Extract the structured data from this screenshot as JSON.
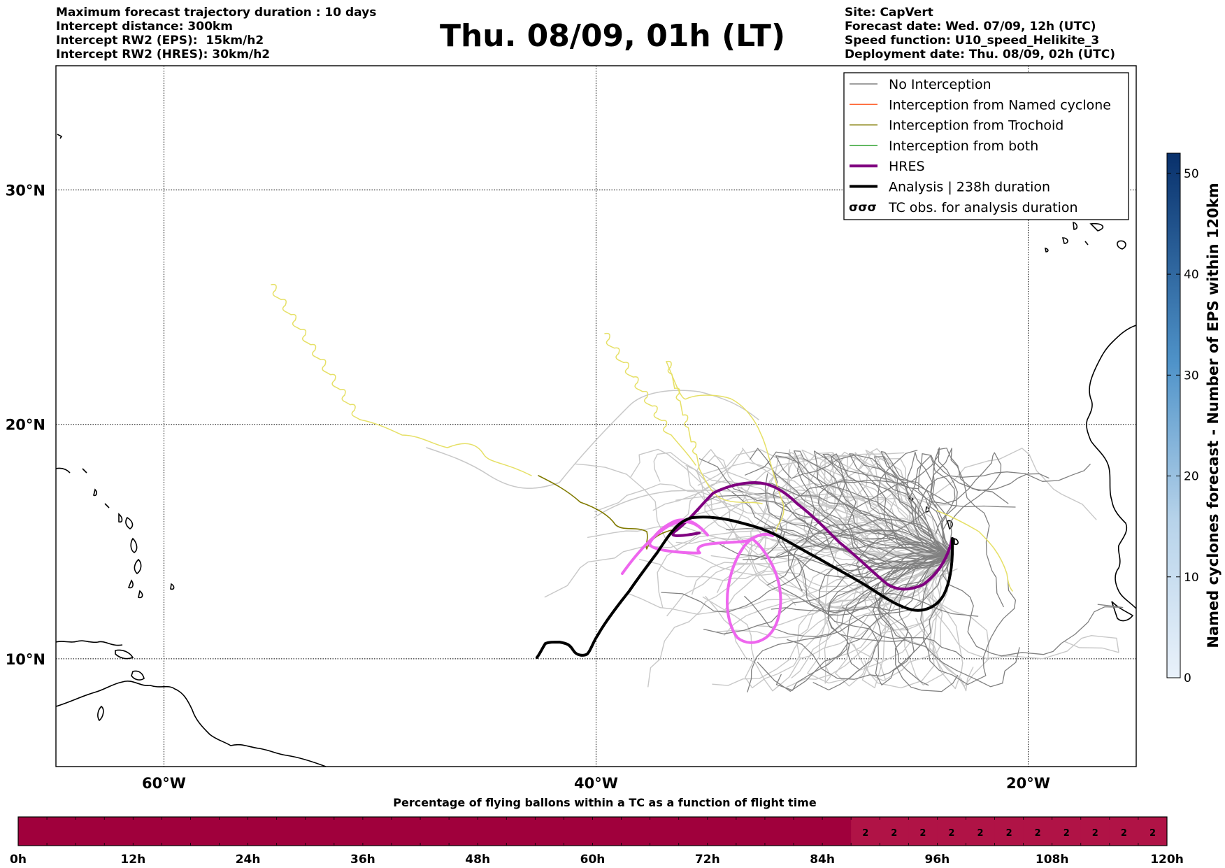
{
  "header": {
    "left_lines": [
      "Maximum forecast trajectory duration : 10 days",
      "Intercept distance: 300km",
      "Intercept RW2 (EPS):  15km/h2",
      "Intercept RW2 (HRES): 30km/h2"
    ],
    "title": "Thu. 08/09, 01h (LT)",
    "right_lines": [
      "Site: CapVert",
      "Forecast date: Wed. 07/09, 12h (UTC)",
      "Speed function: U10_speed_Helikite_3",
      "Deployment date: Thu. 08/09, 02h (UTC)"
    ]
  },
  "map": {
    "lat_labels": [
      "30°N",
      "20°N",
      "10°N"
    ],
    "lon_labels": [
      "60°W",
      "40°W",
      "20°W"
    ],
    "lat_lines": [
      30,
      20,
      10
    ],
    "lon_lines": [
      -60,
      -40,
      -20
    ],
    "extent": {
      "west": -65,
      "east": -15,
      "south": 5.4,
      "north": 35.3
    },
    "colors": {
      "no_interception": "#808080",
      "eps_light": "#c8c8c8",
      "named_cyclone": "#ff6633",
      "trochoid": "#807a00",
      "trochoid_light": "#e6e066",
      "both": "#2ca02c",
      "hres": "#800080",
      "hres_light": "#ee66ee",
      "analysis": "#000000"
    }
  },
  "legend": {
    "items": [
      {
        "label": "No Interception",
        "color": "#808080",
        "kind": "thin"
      },
      {
        "label": "Interception from Named cyclone",
        "color": "#ff6633",
        "kind": "thin"
      },
      {
        "label": "Interception from Trochoid",
        "color": "#807a00",
        "kind": "thin"
      },
      {
        "label": "Interception from both",
        "color": "#2ca02c",
        "kind": "thin"
      },
      {
        "label": "HRES",
        "color": "#800080",
        "kind": "thick"
      },
      {
        "label": "Analysis | 238h duration",
        "color": "#000000",
        "kind": "thick"
      },
      {
        "label": "TC obs. for analysis duration",
        "color": "#000000",
        "kind": "tc"
      }
    ],
    "tc_symbol": "σσσ"
  },
  "colorbar": {
    "label": "Named cyclones forecast - Number of EPS within 120km",
    "ticks": [
      "0",
      "10",
      "20",
      "30",
      "40",
      "50"
    ],
    "range": [
      0,
      52
    ],
    "color_low": "#e3eef8",
    "color_high": "#08306b"
  },
  "timebar": {
    "title": "Percentage of flying ballons within a TC as a function of flight time",
    "tick_labels": [
      "0h",
      "12h",
      "24h",
      "36h",
      "48h",
      "60h",
      "72h",
      "84h",
      "96h",
      "108h",
      "120h"
    ],
    "cell_hours": 3,
    "total_hours": 120,
    "fill_color": "#a0003c",
    "fill_color_light": "#b01346",
    "values_start_hour": 87,
    "cell_value": "2"
  }
}
